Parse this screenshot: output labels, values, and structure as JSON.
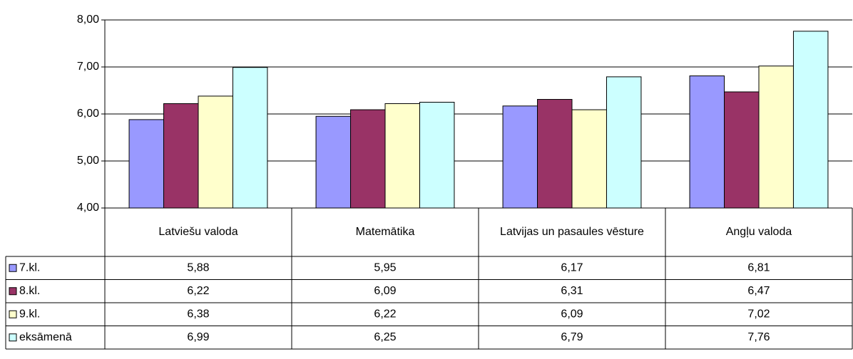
{
  "chart_data": {
    "type": "bar",
    "categories": [
      "Latviešu valoda",
      "Matemātika",
      "Latvijas un pasaules vēsture",
      "Angļu valoda"
    ],
    "series": [
      {
        "name": "7.kl.",
        "color": "#9999ff",
        "values": [
          5.88,
          5.95,
          6.17,
          6.81
        ],
        "value_labels": [
          "5,88",
          "5,95",
          "6,17",
          "6,81"
        ]
      },
      {
        "name": "8.kl.",
        "color": "#993366",
        "values": [
          6.22,
          6.09,
          6.31,
          6.47
        ],
        "value_labels": [
          "6,22",
          "6,09",
          "6,31",
          "6,47"
        ]
      },
      {
        "name": "9.kl.",
        "color": "#ffffcc",
        "values": [
          6.38,
          6.22,
          6.09,
          7.02
        ],
        "value_labels": [
          "6,38",
          "6,22",
          "6,09",
          "7,02"
        ]
      },
      {
        "name": "eksāmenā",
        "color": "#ccffff",
        "values": [
          6.99,
          6.25,
          6.79,
          7.76
        ],
        "value_labels": [
          "6,99",
          "6,25",
          "6,79",
          "7,76"
        ]
      }
    ],
    "ylim": [
      4,
      8
    ],
    "yticks": [
      {
        "value": 4,
        "label": "4,00"
      },
      {
        "value": 5,
        "label": "5,00"
      },
      {
        "value": 6,
        "label": "6,00"
      },
      {
        "value": 7,
        "label": "7,00"
      },
      {
        "value": 8,
        "label": "8,00"
      }
    ],
    "grid": true
  }
}
